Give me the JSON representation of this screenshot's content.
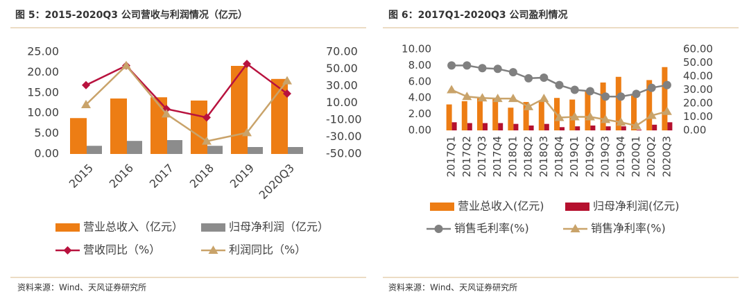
{
  "chart_data": [
    {
      "type": "combo",
      "title": "图 5：2015-2020Q3 公司营收与利润情况（亿元）",
      "source": "资料来源：Wind、天风证券研究所",
      "categories": [
        "2015",
        "2016",
        "2017",
        "2018",
        "2019",
        "2020Q3"
      ],
      "ylim": [
        0,
        25
      ],
      "yticks": [
        {
          "value": 0,
          "label": "0.00"
        },
        {
          "value": 5,
          "label": "5.00"
        },
        {
          "value": 10,
          "label": "10.00"
        },
        {
          "value": 15,
          "label": "15.00"
        },
        {
          "value": 20,
          "label": "20.00"
        },
        {
          "value": 25,
          "label": "25.00"
        }
      ],
      "y2lim": [
        -50,
        70
      ],
      "y2ticks": [
        {
          "value": -50,
          "label": "-50.00"
        },
        {
          "value": -30,
          "label": "-30.00"
        },
        {
          "value": -10,
          "label": "-10.00"
        },
        {
          "value": 10,
          "label": "10.00"
        },
        {
          "value": 30,
          "label": "30.00"
        },
        {
          "value": 50,
          "label": "50.00"
        },
        {
          "value": 70,
          "label": "70.00"
        }
      ],
      "series": [
        {
          "name": "营业总收入（亿元）",
          "kind": "bar",
          "color": "#ED7D14",
          "values": [
            8.8,
            13.6,
            13.9,
            13.1,
            21.6,
            18.4
          ]
        },
        {
          "name": "归母净利润（亿元）",
          "kind": "bar",
          "color": "#8C8C8C",
          "values": [
            2.0,
            3.2,
            3.4,
            2.0,
            1.7,
            1.7
          ]
        },
        {
          "name": "营收同比（%）",
          "kind": "line",
          "marker": "diamond",
          "axis": "y2",
          "color": "#B8123E",
          "values": [
            31,
            54,
            3,
            -7,
            56,
            21
          ]
        },
        {
          "name": "利润同比（%）",
          "kind": "line",
          "marker": "triangle",
          "axis": "y2",
          "color": "#C9A36A",
          "values": [
            8,
            54,
            -3,
            -35,
            -25,
            36
          ]
        }
      ]
    },
    {
      "type": "combo",
      "title": "图 6：2017Q1-2020Q3 公司盈利情况",
      "source": "资料来源：Wind、天风证券研究所",
      "categories": [
        "2017Q1",
        "2017Q2",
        "2017Q3",
        "2017Q4",
        "2018Q1",
        "2018Q2",
        "2018Q3",
        "2018Q4",
        "2019Q1",
        "2019Q2",
        "2019Q3",
        "2019Q4",
        "2020Q1",
        "2020Q2",
        "2020Q3"
      ],
      "ylim": [
        0,
        10
      ],
      "yticks": [
        {
          "value": 0,
          "label": "0.00"
        },
        {
          "value": 2,
          "label": "2.00"
        },
        {
          "value": 4,
          "label": "4.00"
        },
        {
          "value": 6,
          "label": "6.00"
        },
        {
          "value": 8,
          "label": "8.00"
        },
        {
          "value": 10,
          "label": "10.00"
        }
      ],
      "y2lim": [
        0,
        60
      ],
      "y2ticks": [
        {
          "value": 0,
          "label": "0.00"
        },
        {
          "value": 10,
          "label": "10.00"
        },
        {
          "value": 20,
          "label": "20.00"
        },
        {
          "value": 30,
          "label": "30.00"
        },
        {
          "value": 40,
          "label": "40.00"
        },
        {
          "value": 50,
          "label": "50.00"
        },
        {
          "value": 60,
          "label": "60.00"
        }
      ],
      "series": [
        {
          "name": "营业总收入(亿元)",
          "kind": "bar",
          "color": "#ED7D14",
          "values": [
            3.2,
            3.6,
            4.0,
            4.0,
            2.8,
            3.5,
            3.6,
            4.0,
            3.8,
            4.8,
            5.9,
            6.6,
            4.3,
            6.2,
            7.8
          ]
        },
        {
          "name": "归母净利润(亿元)",
          "kind": "bar",
          "color": "#B5102E",
          "values": [
            1.0,
            0.9,
            0.9,
            0.9,
            0.8,
            0.6,
            0.8,
            0.4,
            0.5,
            0.6,
            0.5,
            0.5,
            0.1,
            0.7,
            1.0
          ]
        },
        {
          "name": "销售毛利率(%)",
          "kind": "line",
          "marker": "circle",
          "axis": "y2",
          "color": "#808080",
          "values": [
            48,
            48,
            46,
            45.5,
            43,
            38.5,
            39,
            33.5,
            30,
            29,
            25,
            25,
            27,
            31.5,
            33.5
          ]
        },
        {
          "name": "销售净利率(%)",
          "kind": "line",
          "marker": "triangle",
          "axis": "y2",
          "color": "#C9A36A",
          "values": [
            30,
            25,
            24,
            23.5,
            23.5,
            17.5,
            23.5,
            9.5,
            10,
            10,
            8,
            6,
            3.5,
            11,
            14
          ]
        }
      ]
    }
  ]
}
